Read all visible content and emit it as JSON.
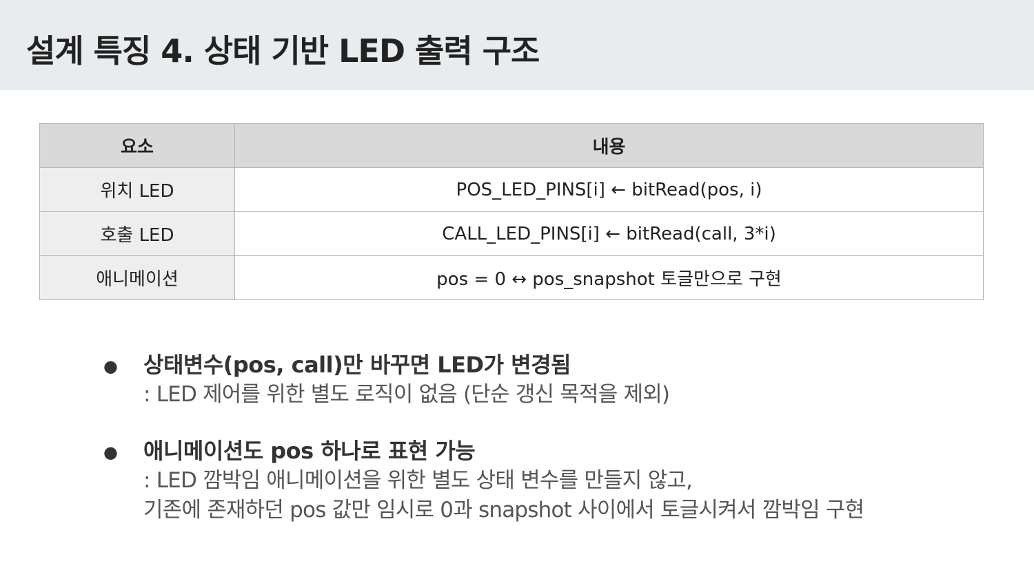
{
  "title": "설계 특징 4. 상태 기반 LED 출력 구조",
  "table": {
    "headers": [
      "요소",
      "내용"
    ],
    "rows": [
      {
        "key": "위치 LED",
        "value": "POS_LED_PINS[i] ← bitRead(pos, i)"
      },
      {
        "key": "호출 LED",
        "value": "CALL_LED_PINS[i] ← bitRead(call, 3*i)"
      },
      {
        "key": "애니메이션",
        "value": "pos = 0 ↔ pos_snapshot 토글만으로 구현"
      }
    ]
  },
  "bullets": [
    {
      "symbol": "●",
      "head": "상태변수(pos, call)만 바꾸면 LED가 변경됨",
      "lines": [
        ": LED 제어를 위한 별도 로직이 없음 (단순 갱신 목적을 제외)"
      ]
    },
    {
      "symbol": "●",
      "head": "애니메이션도 pos 하나로 표현 가능",
      "lines": [
        ": LED 깜박임 애니메이션을 위한 별도 상태 변수를 만들지 않고,",
        "기존에 존재하던 pos 값만 임시로 0과 snapshot 사이에서 토글시켜서 깜박임 구현"
      ]
    }
  ]
}
